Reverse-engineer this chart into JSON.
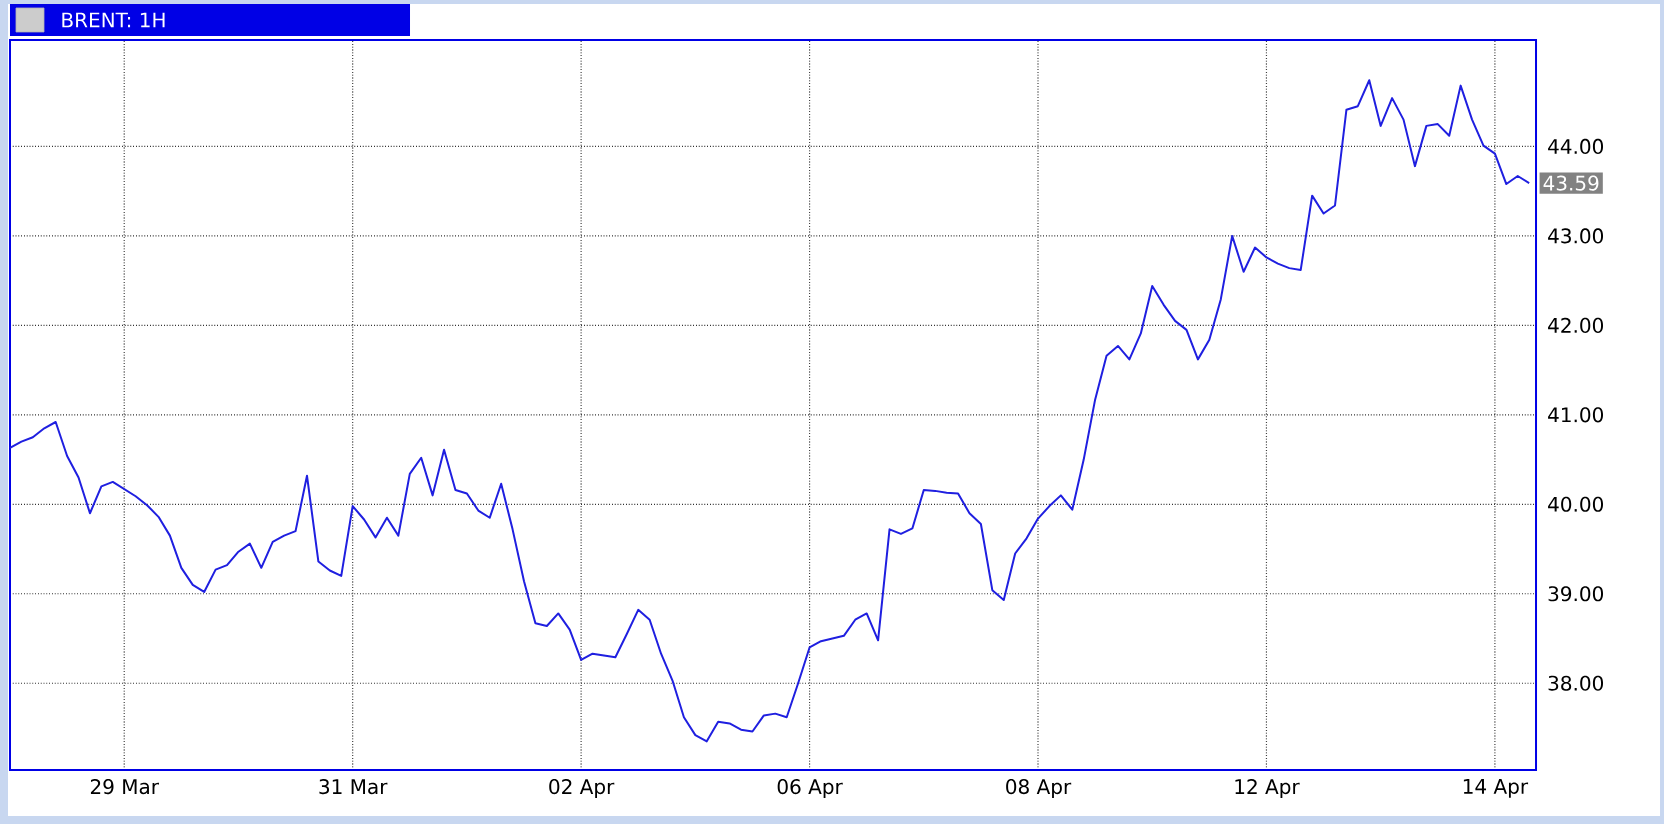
{
  "chart_data": {
    "type": "line",
    "title": "BRENT: 1H",
    "categories": [
      null,
      null,
      null,
      null,
      null,
      null,
      null,
      null,
      null,
      null,
      "29 Mar",
      null,
      null,
      null,
      null,
      null,
      null,
      null,
      null,
      null,
      null,
      null,
      null,
      null,
      null,
      null,
      null,
      null,
      null,
      null,
      "31 Mar",
      null,
      null,
      null,
      null,
      null,
      null,
      null,
      null,
      null,
      null,
      null,
      null,
      null,
      null,
      null,
      null,
      null,
      null,
      null,
      "02 Apr",
      null,
      null,
      null,
      null,
      null,
      null,
      null,
      null,
      null,
      null,
      null,
      null,
      null,
      null,
      null,
      null,
      null,
      null,
      null,
      "06 Apr",
      null,
      null,
      null,
      null,
      null,
      null,
      null,
      null,
      null,
      null,
      null,
      null,
      null,
      null,
      null,
      null,
      null,
      null,
      null,
      "08 Apr",
      null,
      null,
      null,
      null,
      null,
      null,
      null,
      null,
      null,
      null,
      null,
      null,
      null,
      null,
      null,
      null,
      null,
      null,
      null,
      "12 Apr",
      null,
      null,
      null,
      null,
      null,
      null,
      null,
      null,
      null,
      null,
      null,
      null,
      null,
      null,
      null,
      null,
      null,
      null,
      null,
      "14 Apr",
      null,
      null,
      null
    ],
    "series": [
      {
        "color": "#1f1fe0",
        "values": [
          40.63,
          40.7,
          40.75,
          40.85,
          40.92,
          40.54,
          40.3,
          39.9,
          40.2,
          40.25,
          40.17,
          40.09,
          39.99,
          39.86,
          39.65,
          39.29,
          39.1,
          39.02,
          39.27,
          39.32,
          39.47,
          39.56,
          39.29,
          39.58,
          39.65,
          39.7,
          40.32,
          39.36,
          39.26,
          39.2,
          39.98,
          39.83,
          39.63,
          39.85,
          39.65,
          40.34,
          40.52,
          40.1,
          40.61,
          40.16,
          40.12,
          39.93,
          39.85,
          40.23,
          39.72,
          39.14,
          38.67,
          38.64,
          38.78,
          38.6,
          38.26,
          38.33,
          38.31,
          38.29,
          38.55,
          38.82,
          38.71,
          38.33,
          38.03,
          37.62,
          37.42,
          37.35,
          37.57,
          37.55,
          37.48,
          37.46,
          37.64,
          37.66,
          37.62,
          38.0,
          38.4,
          38.47,
          38.5,
          38.53,
          38.71,
          38.78,
          38.48,
          39.72,
          39.67,
          39.73,
          40.16,
          40.15,
          40.13,
          40.12,
          39.9,
          39.78,
          39.04,
          38.93,
          39.45,
          39.62,
          39.84,
          39.98,
          40.1,
          39.94,
          40.5,
          41.17,
          41.66,
          41.77,
          41.62,
          41.91,
          42.44,
          42.23,
          42.05,
          41.95,
          41.62,
          41.84,
          42.29,
          43.0,
          42.6,
          42.87,
          42.76,
          42.69,
          42.64,
          42.62,
          43.45,
          43.25,
          43.34,
          44.41,
          44.45,
          44.74,
          44.23,
          44.54,
          44.3,
          43.78,
          44.23,
          44.25,
          44.12,
          44.68,
          44.3,
          44.01,
          43.92,
          43.58,
          43.67,
          43.59
        ]
      }
    ],
    "ylim": [
      37.03,
      45.19
    ],
    "yticks": [
      {
        "value": 38,
        "label": "38.00"
      },
      {
        "value": 39,
        "label": "39.00"
      },
      {
        "value": 40,
        "label": "40.00"
      },
      {
        "value": 41,
        "label": "41.00"
      },
      {
        "value": 42,
        "label": "42.00"
      },
      {
        "value": 43,
        "label": "43.00"
      },
      {
        "value": 44,
        "label": "44.00"
      }
    ],
    "grid": true,
    "annotations": [
      {
        "text": "43.59",
        "y": 43.59
      }
    ]
  }
}
